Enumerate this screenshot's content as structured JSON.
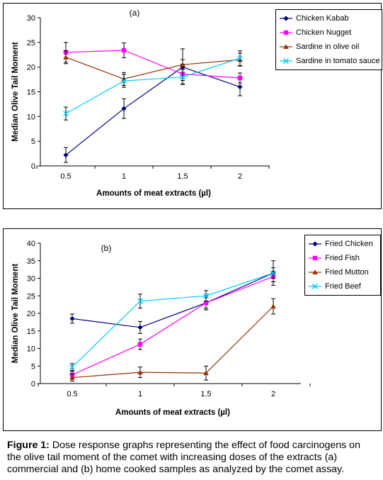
{
  "caption": {
    "label": "Figure 1:",
    "text": " Dose response graphs representing the effect of food carcinogens on the olive tail moment of the comet with increasing doses of the extracts (a) commercial and (b) home cooked samples as analyzed by the comet assay."
  },
  "chart_data": [
    {
      "type": "line",
      "panel_label": "(a)",
      "xlabel": "Amounts  of meat extracts (µl)",
      "ylabel": "Median Olive Tail Moment",
      "x": [
        0.5,
        1,
        1.5,
        2
      ],
      "x_tick_labels": [
        "0.5",
        "1",
        "1.5",
        "2"
      ],
      "ylim": [
        0,
        30
      ],
      "y_ticks": [
        0,
        5,
        10,
        15,
        20,
        25,
        30
      ],
      "grid": false,
      "legend_position": "top-right",
      "series": [
        {
          "name": "Chicken Kabab",
          "color": "#000080",
          "marker": "diamond",
          "values": [
            2.2,
            11.6,
            20.0,
            16.0
          ],
          "errors": [
            1.5,
            2.0,
            1.5,
            1.8
          ]
        },
        {
          "name": "Chicken Nugget",
          "color": "#ff00ff",
          "marker": "square",
          "values": [
            23.0,
            23.4,
            18.6,
            17.8
          ],
          "errors": [
            2.0,
            1.5,
            2.0,
            1.0
          ]
        },
        {
          "name": "Sardine in olive oil",
          "color": "#993300",
          "marker": "triangle",
          "values": [
            22.0,
            17.6,
            20.5,
            21.5
          ],
          "errors": [
            1.3,
            1.3,
            3.2,
            1.3
          ]
        },
        {
          "name": "Sardine in tomato sauce",
          "color": "#00ccff",
          "marker": "x",
          "values": [
            10.6,
            17.2,
            18.0,
            21.8
          ],
          "errors": [
            1.3,
            1.3,
            1.5,
            1.5
          ]
        }
      ]
    },
    {
      "type": "line",
      "panel_label": "(b)",
      "xlabel": "Amounts of meat extracts (µl)",
      "ylabel": "Median Olive Tail Moment",
      "x": [
        0.5,
        1,
        1.5,
        2
      ],
      "x_tick_labels": [
        "0.5",
        "1",
        "1.5",
        "2"
      ],
      "ylim": [
        0,
        40
      ],
      "y_ticks": [
        0,
        5,
        10,
        15,
        20,
        25,
        30,
        35,
        40
      ],
      "grid": false,
      "legend_position": "top-right",
      "series": [
        {
          "name": "Fried Chicken",
          "color": "#000080",
          "marker": "diamond",
          "values": [
            18.5,
            16.0,
            23.0,
            31.5
          ],
          "errors": [
            1.3,
            1.7,
            2.0,
            3.5
          ]
        },
        {
          "name": "Fried Fish",
          "color": "#ff00ff",
          "marker": "square",
          "values": [
            2.5,
            11.2,
            23.0,
            30.5
          ],
          "errors": [
            1.0,
            1.5,
            1.5,
            1.5
          ]
        },
        {
          "name": "Fried Mutton",
          "color": "#993300",
          "marker": "triangle",
          "values": [
            1.7,
            3.2,
            3.0,
            22.0
          ],
          "errors": [
            1.0,
            1.5,
            2.0,
            2.2
          ]
        },
        {
          "name": "Fried Beef",
          "color": "#00ccff",
          "marker": "x",
          "values": [
            4.7,
            23.5,
            25.0,
            31.5
          ],
          "errors": [
            1.0,
            2.0,
            1.5,
            1.5
          ]
        }
      ]
    }
  ]
}
